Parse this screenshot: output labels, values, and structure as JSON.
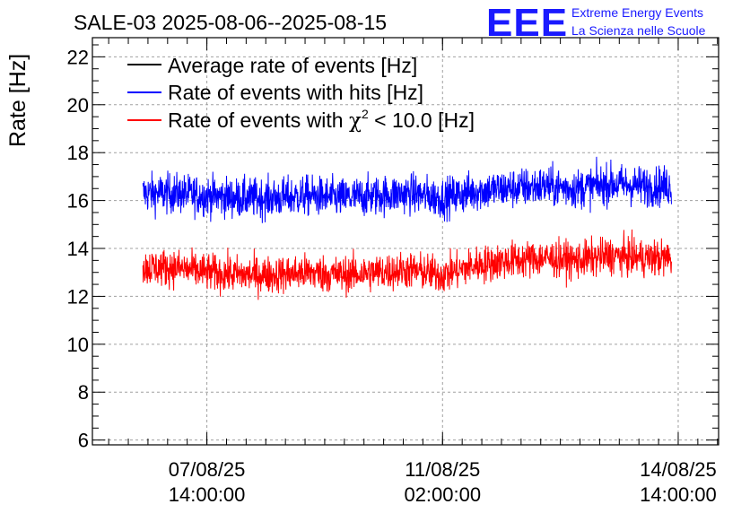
{
  "header": {
    "title": "SALE-03 2025-08-06--2025-08-15",
    "logo_text": "EEE",
    "logo_line1": "Extreme Energy Events",
    "logo_line2": "La Scienza nelle Scuole"
  },
  "colors": {
    "average": "#000000",
    "hits": "#0000ff",
    "chi2": "#ff0000",
    "grid": "#a0a0a0",
    "logo": "#1a1aff"
  },
  "chart_data": {
    "type": "line",
    "title": "SALE-03 2025-08-06--2025-08-15",
    "ylabel": "Rate [Hz]",
    "xlabel": "",
    "ylim": [
      5.8,
      22.8
    ],
    "yticks": [
      6,
      8,
      10,
      12,
      14,
      16,
      18,
      20,
      22
    ],
    "ytick_labels": [
      "6",
      "8",
      "10",
      "12",
      "14",
      "16",
      "18",
      "20",
      "22"
    ],
    "xlim_days": [
      0,
      9.3
    ],
    "xticks_days": [
      1.7,
      5.2,
      8.7
    ],
    "xtick_labels": [
      [
        "07/08/25",
        "14:00:00"
      ],
      [
        "11/08/25",
        "02:00:00"
      ],
      [
        "14/08/25",
        "14:00:00"
      ]
    ],
    "grid": true,
    "legend_position": "top-left",
    "legend": [
      {
        "label": "Average rate of events [Hz]",
        "series": "average"
      },
      {
        "label": "Rate of events with hits [Hz]",
        "series": "hits"
      },
      {
        "label_prefix": "Rate of events with ",
        "label_symbol": "χ",
        "label_sup": "2",
        "label_suffix": " < 10.0 [Hz]",
        "series": "chi2"
      }
    ],
    "series": [
      {
        "name": "Rate of events with hits [Hz]",
        "key": "hits",
        "x_days": [
          0.75,
          1.2,
          1.7,
          2.2,
          2.7,
          3.2,
          3.7,
          4.2,
          4.7,
          5.2,
          5.7,
          6.2,
          6.7,
          7.2,
          7.7,
          8.2,
          8.6
        ],
        "mean": [
          16.3,
          16.3,
          16.2,
          16.1,
          16.1,
          16.2,
          16.1,
          16.2,
          16.3,
          16.1,
          16.4,
          16.5,
          16.6,
          16.5,
          16.7,
          16.6,
          16.6
        ],
        "spread": 0.75
      },
      {
        "name": "Rate of events with χ2 < 10.0 [Hz]",
        "key": "chi2",
        "x_days": [
          0.75,
          1.2,
          1.7,
          2.2,
          2.7,
          3.2,
          3.7,
          4.2,
          4.7,
          5.2,
          5.7,
          6.2,
          6.7,
          7.2,
          7.7,
          8.2,
          8.6
        ],
        "mean": [
          13.2,
          13.2,
          13.0,
          12.9,
          12.9,
          13.0,
          12.9,
          13.0,
          13.1,
          12.9,
          13.3,
          13.5,
          13.6,
          13.5,
          13.7,
          13.6,
          13.6
        ],
        "spread": 0.7
      }
    ]
  }
}
